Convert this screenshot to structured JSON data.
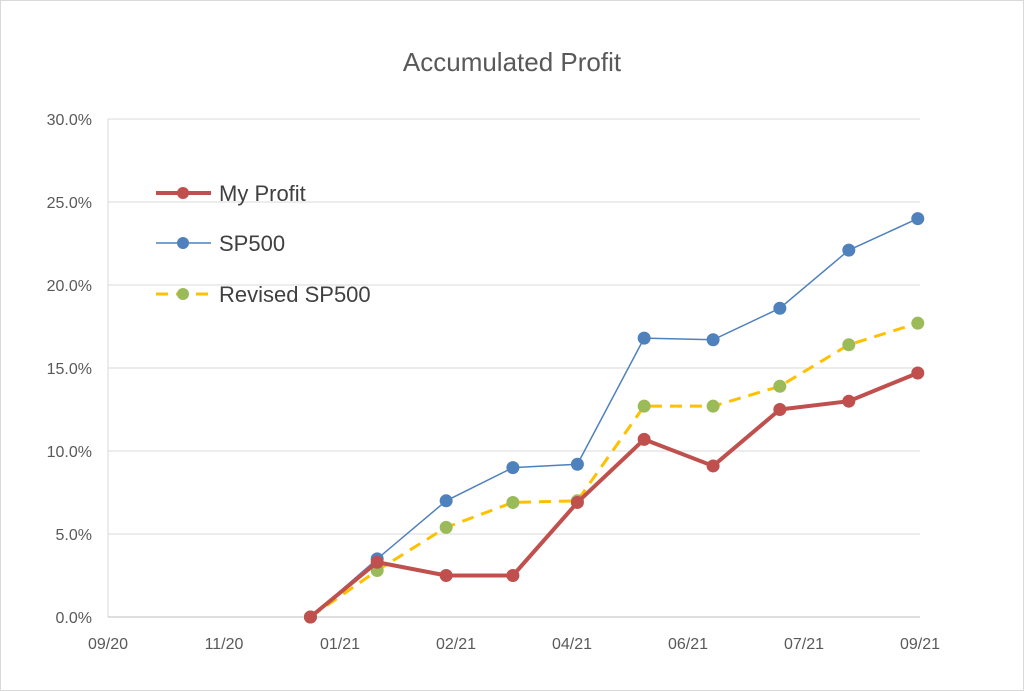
{
  "chart_data": {
    "type": "line",
    "title": "Accumulated Profit",
    "xlabel": "",
    "ylabel": "",
    "x_ticks": [
      "09/20",
      "11/20",
      "01/21",
      "02/21",
      "04/21",
      "06/21",
      "07/21",
      "09/21"
    ],
    "y_ticks": [
      "0.0%",
      "5.0%",
      "10.0%",
      "15.0%",
      "20.0%",
      "25.0%",
      "30.0%"
    ],
    "ylim": [
      0,
      30
    ],
    "grid": true,
    "legend_position": "top-left",
    "x": [
      "2020-12-01",
      "2020-12-31",
      "2021-01-31",
      "2021-03-02",
      "2021-03-31",
      "2021-04-30",
      "2021-05-31",
      "2021-06-30",
      "2021-07-31",
      "2021-08-31"
    ],
    "series": [
      {
        "name": "My Profit",
        "color": "#c0504d",
        "style": "solid-thick",
        "values": [
          0.0,
          3.3,
          2.5,
          2.5,
          6.9,
          10.7,
          9.1,
          12.5,
          13.0,
          14.7
        ]
      },
      {
        "name": "SP500",
        "color": "#4f81bd",
        "style": "solid-thin",
        "values": [
          0.0,
          3.5,
          7.0,
          9.0,
          9.2,
          16.8,
          16.7,
          18.6,
          22.1,
          24.0
        ]
      },
      {
        "name": "Revised SP500",
        "color": "#ffc000",
        "marker_color": "#9bbb59",
        "style": "dashed",
        "values": [
          0.0,
          2.8,
          5.4,
          6.9,
          7.0,
          12.7,
          12.7,
          13.9,
          16.4,
          17.7
        ]
      }
    ]
  }
}
